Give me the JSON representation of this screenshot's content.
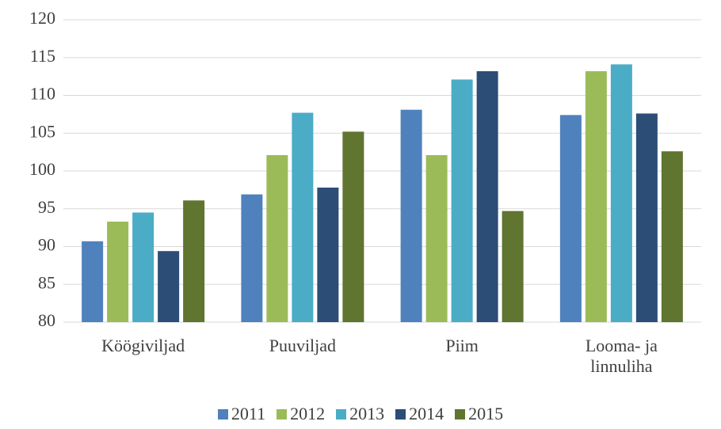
{
  "chart_data": {
    "type": "bar",
    "categories": [
      "Köögiviljad",
      "Puuviljad",
      "Piim",
      "Looma- ja linnuliha"
    ],
    "series": [
      {
        "name": "2011",
        "color": "#4f81bd",
        "values": [
          90.7,
          96.9,
          108.1,
          107.4
        ]
      },
      {
        "name": "2012",
        "color": "#9bbb59",
        "values": [
          93.3,
          102.1,
          102.1,
          113.2
        ]
      },
      {
        "name": "2013",
        "color": "#4bacc6",
        "values": [
          94.5,
          107.7,
          112.1,
          114.1
        ]
      },
      {
        "name": "2014",
        "color": "#2c4d75",
        "values": [
          89.4,
          97.8,
          113.2,
          107.6
        ]
      },
      {
        "name": "2015",
        "color": "#5f7530",
        "values": [
          96.1,
          105.2,
          94.7,
          102.6
        ]
      }
    ],
    "ylim": [
      80,
      120
    ],
    "yticks": [
      80,
      85,
      90,
      95,
      100,
      105,
      110,
      115,
      120
    ],
    "grid": true,
    "legend": "bottom"
  }
}
